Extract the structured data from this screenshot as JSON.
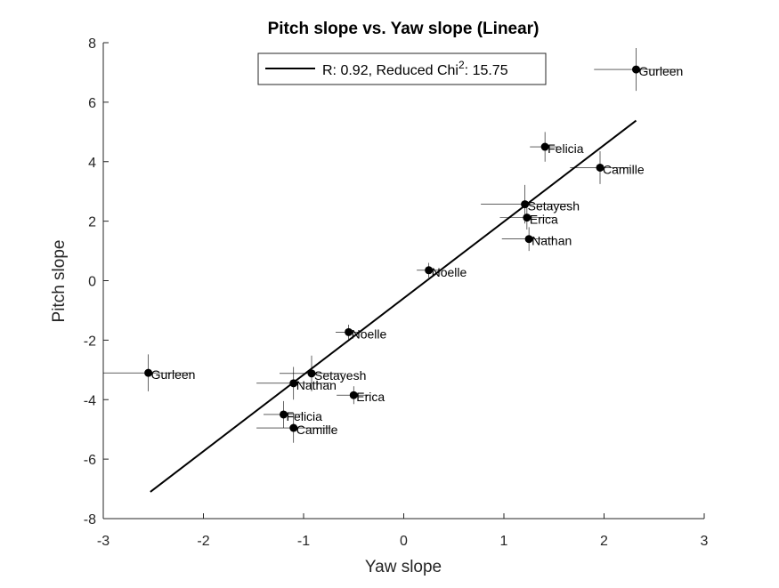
{
  "chart_data": {
    "type": "scatter",
    "title": "Pitch slope vs. Yaw slope (Linear)",
    "xlabel": "Yaw slope",
    "ylabel": "Pitch slope",
    "xlim": [
      -3,
      3
    ],
    "ylim": [
      -8,
      8
    ],
    "xticks": [
      -3,
      -2,
      -1,
      0,
      1,
      2,
      3
    ],
    "yticks": [
      -8,
      -6,
      -4,
      -2,
      0,
      2,
      4,
      6,
      8
    ],
    "grid": false,
    "legend": {
      "placement": "top-center",
      "entry_prefix": "R: 0.92, Reduced Chi",
      "entry_sup": "2",
      "entry_suffix": ": 15.75"
    },
    "fit_line": {
      "x": [
        -2.53,
        2.32
      ],
      "y": [
        -7.1,
        5.38
      ]
    },
    "points": [
      {
        "label": "Gurleen",
        "x": 2.32,
        "y": 7.1,
        "xerr": 0.42,
        "yerr": 0.72
      },
      {
        "label": "Felicia",
        "x": 1.41,
        "y": 4.5,
        "xerr": 0.15,
        "yerr": 0.5
      },
      {
        "label": "Camille",
        "x": 1.96,
        "y": 3.8,
        "xerr": 0.3,
        "yerr": 0.55
      },
      {
        "label": "Setayesh",
        "x": 1.21,
        "y": 2.57,
        "xerr": 0.44,
        "yerr": 0.65
      },
      {
        "label": "Erica",
        "x": 1.23,
        "y": 2.12,
        "xerr": 0.27,
        "yerr": 0.4
      },
      {
        "label": "Nathan",
        "x": 1.25,
        "y": 1.4,
        "xerr": 0.27,
        "yerr": 0.4
      },
      {
        "label": "Noelle",
        "x": 0.25,
        "y": 0.35,
        "xerr": 0.12,
        "yerr": 0.25
      },
      {
        "label": "Noelle",
        "x": -0.55,
        "y": -1.73,
        "xerr": 0.13,
        "yerr": 0.25
      },
      {
        "label": "Gurleen",
        "x": -2.55,
        "y": -3.1,
        "xerr": 0.45,
        "yerr": 0.62
      },
      {
        "label": "Setayesh",
        "x": -0.92,
        "y": -3.12,
        "xerr": 0.32,
        "yerr": 0.6
      },
      {
        "label": "Nathan",
        "x": -1.1,
        "y": -3.45,
        "xerr": 0.37,
        "yerr": 0.55
      },
      {
        "label": "Erica",
        "x": -0.5,
        "y": -3.85,
        "xerr": 0.17,
        "yerr": 0.3
      },
      {
        "label": "Felicia",
        "x": -1.2,
        "y": -4.5,
        "xerr": 0.2,
        "yerr": 0.45
      },
      {
        "label": "Camille",
        "x": -1.1,
        "y": -4.95,
        "xerr": 0.37,
        "yerr": 0.5
      }
    ]
  }
}
